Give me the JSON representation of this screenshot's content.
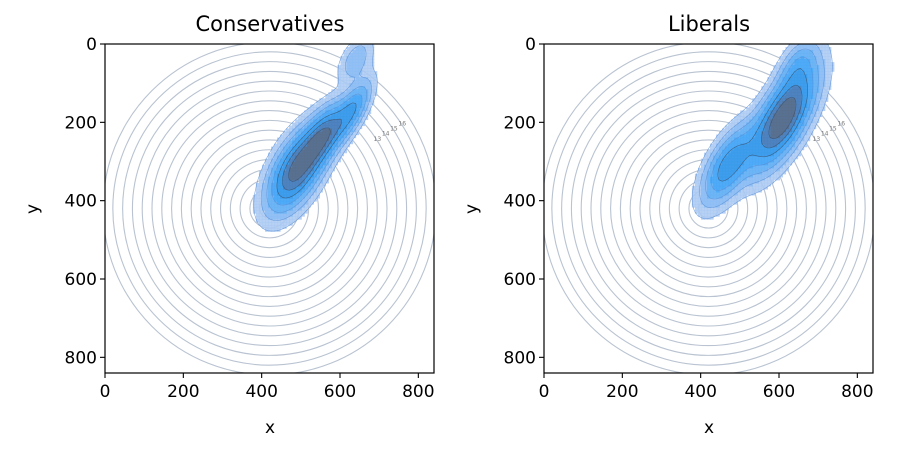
{
  "chart_data": [
    {
      "type": "kde-contour",
      "title": "Conservatives",
      "xlabel": "x",
      "ylabel": "y",
      "xlim": [
        0,
        840
      ],
      "ylim": [
        840,
        0
      ],
      "xticks": [
        0,
        200,
        400,
        600,
        800
      ],
      "yticks": [
        0,
        200,
        400,
        600,
        800
      ],
      "rings": {
        "center": [
          420,
          420
        ],
        "radii": [
          25,
          50,
          75,
          100,
          125,
          150,
          175,
          200,
          225,
          250,
          275,
          300,
          325,
          350,
          375,
          400,
          425
        ],
        "labels": [
          "13",
          "14",
          "15",
          "16"
        ],
        "color": "#b9c3d1"
      },
      "density_modes": [
        {
          "x": 490,
          "y": 320,
          "sx": 35,
          "sy": 75,
          "weight": 1.0
        },
        {
          "x": 560,
          "y": 230,
          "sx": 25,
          "sy": 55,
          "weight": 0.7
        },
        {
          "x": 630,
          "y": 170,
          "sx": 20,
          "sy": 55,
          "weight": 0.55
        },
        {
          "x": 640,
          "y": 40,
          "sx": 22,
          "sy": 40,
          "weight": 0.25
        }
      ],
      "fill_color": "#1e90ff"
    },
    {
      "type": "kde-contour",
      "title": "Liberals",
      "xlabel": "x",
      "ylabel": "y",
      "xlim": [
        0,
        840
      ],
      "ylim": [
        840,
        0
      ],
      "xticks": [
        0,
        200,
        400,
        600,
        800
      ],
      "yticks": [
        0,
        200,
        400,
        600,
        800
      ],
      "rings": {
        "center": [
          420,
          420
        ],
        "radii": [
          25,
          50,
          75,
          100,
          125,
          150,
          175,
          200,
          225,
          250,
          275,
          300,
          325,
          350,
          375,
          400,
          425
        ],
        "labels": [
          "13",
          "14",
          "15",
          "16"
        ],
        "color": "#b9c3d1"
      },
      "density_modes": [
        {
          "x": 610,
          "y": 190,
          "sx": 35,
          "sy": 90,
          "weight": 1.0
        },
        {
          "x": 470,
          "y": 310,
          "sx": 30,
          "sy": 70,
          "weight": 0.6
        },
        {
          "x": 650,
          "y": 50,
          "sx": 25,
          "sy": 45,
          "weight": 0.25
        }
      ],
      "fill_color": "#1e90ff"
    }
  ]
}
